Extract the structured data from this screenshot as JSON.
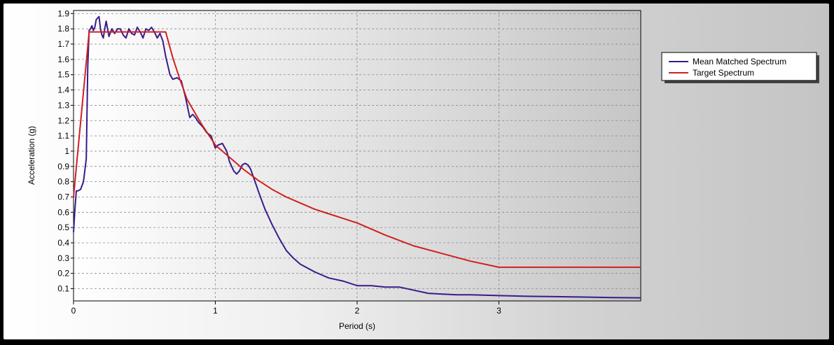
{
  "chart_data": {
    "type": "line",
    "title": "",
    "xlabel": "Period (s)",
    "ylabel": "Acceleration (g)",
    "xlim": [
      0,
      4
    ],
    "ylim": [
      0.02,
      1.92
    ],
    "xticks": [
      0,
      1,
      2,
      3
    ],
    "xtick_labels": [
      "0",
      "1",
      "2",
      "3"
    ],
    "yticks": [
      0.1,
      0.2,
      0.3,
      0.4,
      0.5,
      0.6,
      0.7,
      0.8,
      0.9,
      1,
      1.1,
      1.2,
      1.3,
      1.4,
      1.5,
      1.6,
      1.7,
      1.8,
      1.9
    ],
    "ytick_labels": [
      "0.1",
      "0.2",
      "0.3",
      "0.4",
      "0.5",
      "0.6",
      "0.7",
      "0.8",
      "0.9",
      "1",
      "1.1",
      "1.2",
      "1.3",
      "1.4",
      "1.5",
      "1.6",
      "1.7",
      "1.8",
      "1.9"
    ],
    "grid": true,
    "legend_position": "top-right, outside plot area",
    "background_gradient": [
      "#ffffff",
      "#c4c4c4"
    ],
    "series": [
      {
        "name": "Mean Matched Spectrum",
        "color": "#3a1b8a",
        "x": [
          0,
          0.01,
          0.02,
          0.03,
          0.05,
          0.07,
          0.09,
          0.1,
          0.11,
          0.12,
          0.13,
          0.14,
          0.15,
          0.16,
          0.18,
          0.19,
          0.2,
          0.21,
          0.22,
          0.23,
          0.25,
          0.27,
          0.29,
          0.31,
          0.33,
          0.35,
          0.37,
          0.39,
          0.41,
          0.43,
          0.45,
          0.47,
          0.49,
          0.51,
          0.53,
          0.55,
          0.57,
          0.59,
          0.61,
          0.63,
          0.65,
          0.68,
          0.7,
          0.73,
          0.76,
          0.79,
          0.82,
          0.84,
          0.86,
          0.88,
          0.91,
          0.94,
          0.97,
          1.0,
          1.02,
          1.05,
          1.08,
          1.1,
          1.13,
          1.15,
          1.17,
          1.19,
          1.21,
          1.23,
          1.25,
          1.28,
          1.31,
          1.35,
          1.4,
          1.45,
          1.5,
          1.55,
          1.6,
          1.7,
          1.8,
          1.9,
          2.0,
          2.1,
          2.2,
          2.3,
          2.4,
          2.5,
          2.6,
          2.7,
          2.8,
          3.0,
          3.2,
          3.4,
          3.6,
          3.8,
          4.0
        ],
        "y": [
          0.47,
          0.62,
          0.74,
          0.74,
          0.75,
          0.8,
          0.95,
          1.55,
          1.79,
          1.8,
          1.82,
          1.79,
          1.81,
          1.86,
          1.88,
          1.8,
          1.76,
          1.74,
          1.8,
          1.85,
          1.75,
          1.8,
          1.77,
          1.8,
          1.8,
          1.76,
          1.74,
          1.8,
          1.77,
          1.76,
          1.81,
          1.78,
          1.74,
          1.8,
          1.79,
          1.81,
          1.78,
          1.74,
          1.77,
          1.72,
          1.62,
          1.5,
          1.47,
          1.48,
          1.46,
          1.35,
          1.22,
          1.24,
          1.22,
          1.19,
          1.16,
          1.12,
          1.1,
          1.02,
          1.04,
          1.05,
          1.0,
          0.93,
          0.87,
          0.85,
          0.87,
          0.91,
          0.92,
          0.91,
          0.88,
          0.8,
          0.72,
          0.62,
          0.52,
          0.43,
          0.35,
          0.3,
          0.26,
          0.21,
          0.17,
          0.15,
          0.12,
          0.12,
          0.11,
          0.11,
          0.09,
          0.07,
          0.065,
          0.06,
          0.06,
          0.055,
          0.05,
          0.048,
          0.045,
          0.042,
          0.04
        ]
      },
      {
        "name": "Target Spectrum",
        "color": "#d02020",
        "x": [
          0,
          0.11,
          0.65,
          0.7,
          0.75,
          0.8,
          0.9,
          1.0,
          1.1,
          1.2,
          1.3,
          1.4,
          1.5,
          1.6,
          1.7,
          1.8,
          1.9,
          2.0,
          2.2,
          2.4,
          2.6,
          2.8,
          3.0,
          4.0
        ],
        "y": [
          0.7,
          1.78,
          1.78,
          1.61,
          1.47,
          1.34,
          1.18,
          1.04,
          0.96,
          0.88,
          0.81,
          0.75,
          0.7,
          0.66,
          0.62,
          0.59,
          0.56,
          0.53,
          0.45,
          0.38,
          0.33,
          0.28,
          0.24,
          0.24
        ]
      }
    ]
  }
}
